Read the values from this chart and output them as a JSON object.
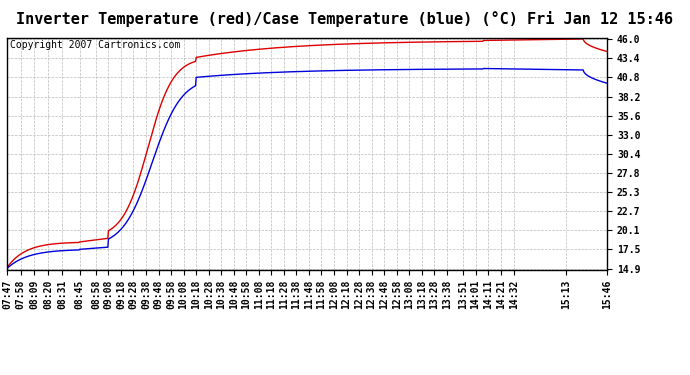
{
  "title": "Inverter Temperature (red)/Case Temperature (blue) (°C) Fri Jan 12 15:46",
  "copyright": "Copyright 2007 Cartronics.com",
  "bg_color": "#ffffff",
  "plot_bg_color": "#ffffff",
  "grid_color": "#bbbbbb",
  "line_red_color": "#dd0000",
  "line_blue_color": "#0000dd",
  "yticks": [
    14.9,
    17.5,
    20.1,
    22.7,
    25.3,
    27.8,
    30.4,
    33.0,
    35.6,
    38.2,
    40.8,
    43.4,
    46.0
  ],
  "ymin": 14.9,
  "ymax": 46.0,
  "xtick_labels": [
    "07:47",
    "07:58",
    "08:09",
    "08:20",
    "08:31",
    "08:45",
    "08:58",
    "09:08",
    "09:18",
    "09:28",
    "09:38",
    "09:48",
    "09:58",
    "10:08",
    "10:18",
    "10:28",
    "10:38",
    "10:48",
    "10:58",
    "11:08",
    "11:18",
    "11:28",
    "11:38",
    "11:48",
    "11:58",
    "12:08",
    "12:18",
    "12:28",
    "12:38",
    "12:48",
    "12:58",
    "13:08",
    "13:18",
    "13:28",
    "13:38",
    "13:51",
    "14:01",
    "14:11",
    "14:21",
    "14:32",
    "15:13",
    "15:46"
  ],
  "title_fontsize": 11,
  "tick_fontsize": 7,
  "copyright_fontsize": 7
}
